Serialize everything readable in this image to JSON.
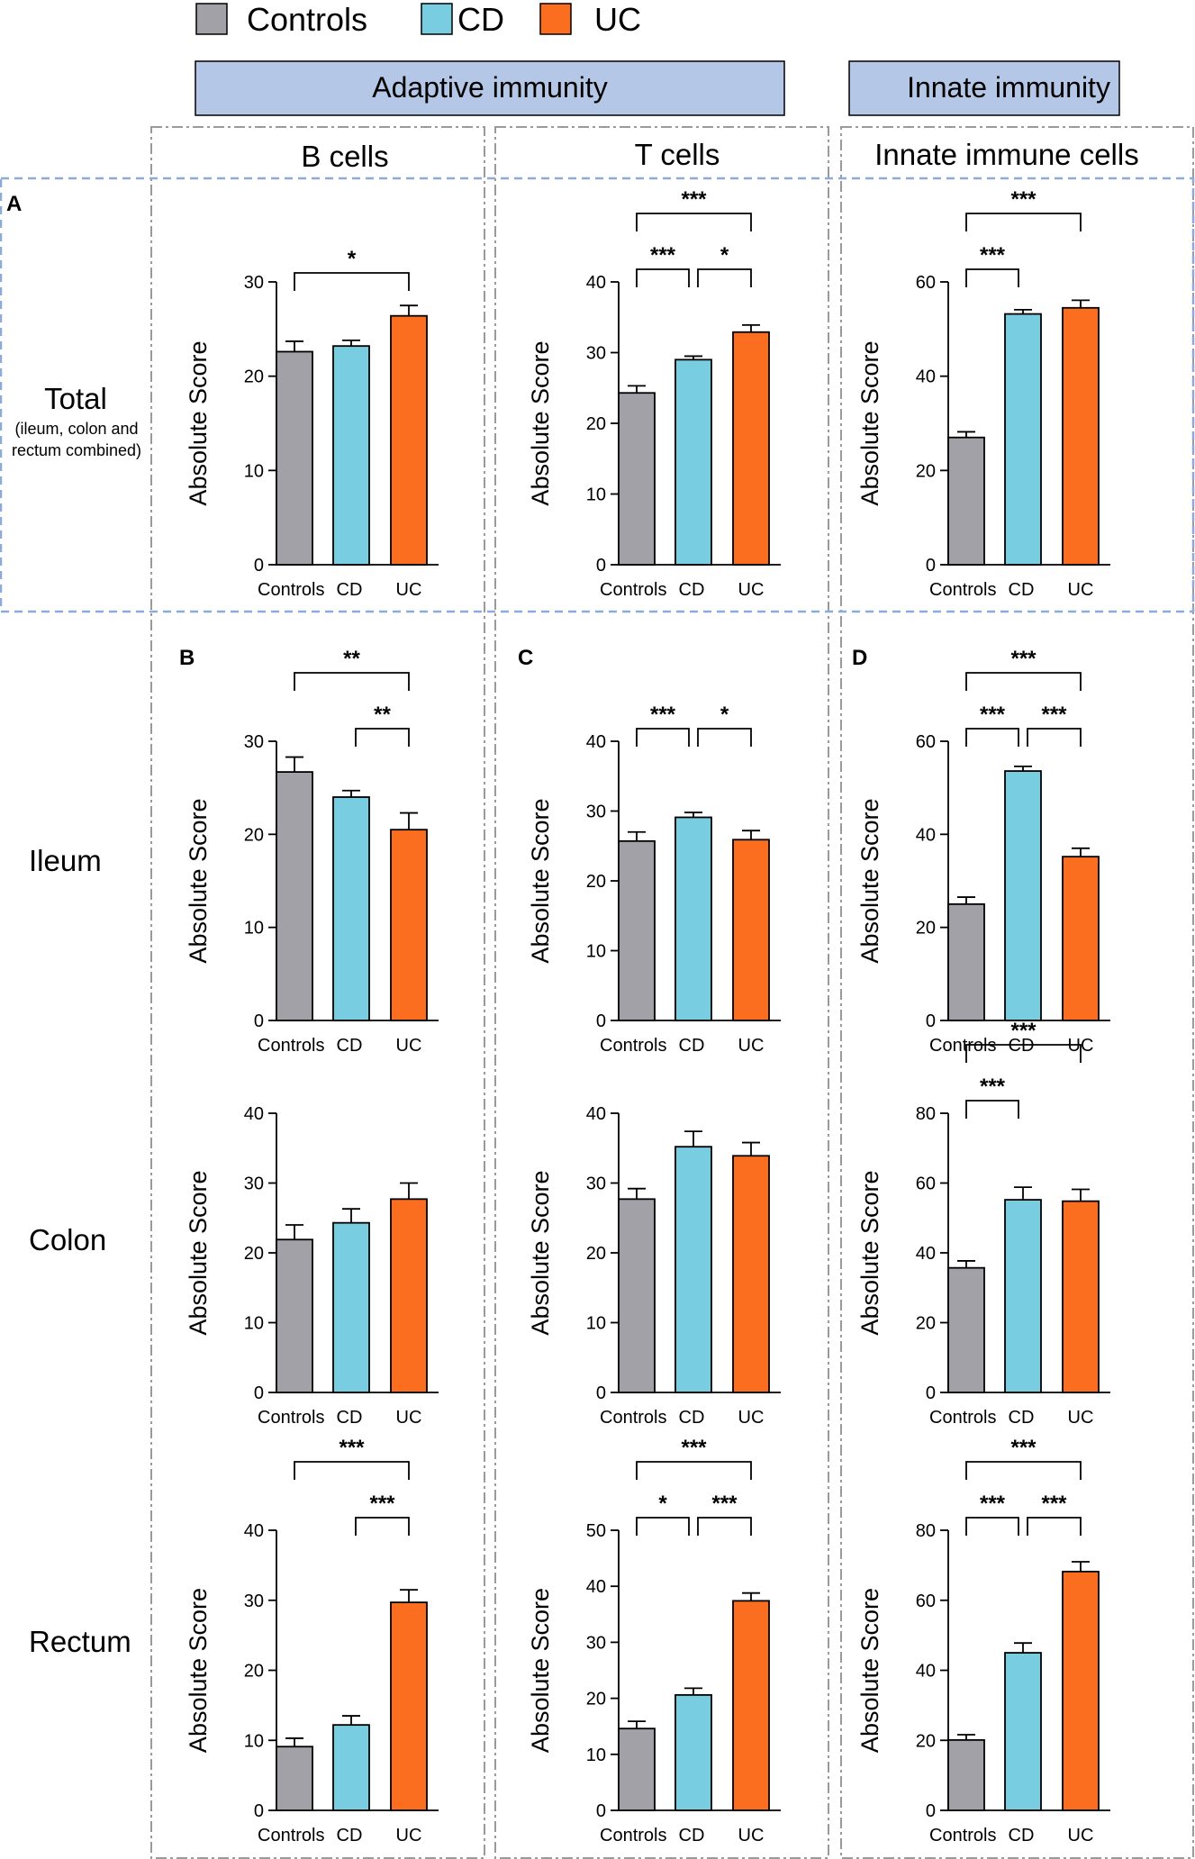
{
  "legend": [
    {
      "label": "Controls",
      "color": "#a2a1a8"
    },
    {
      "label": "CD",
      "color": "#78cde0"
    },
    {
      "label": "UC",
      "color": "#fb6e1f"
    }
  ],
  "headers": {
    "adaptive": "Adaptive immunity",
    "innate": "Innate immunity",
    "columns": [
      "B cells",
      "T cells",
      "Innate immune cells"
    ]
  },
  "rows": [
    {
      "title": "Total",
      "subtitle_lines": [
        "(ileum, colon and",
        "rectum combined)"
      ]
    },
    {
      "title": "Ileum",
      "subtitle_lines": []
    },
    {
      "title": "Colon",
      "subtitle_lines": []
    },
    {
      "title": "Rectum",
      "subtitle_lines": []
    }
  ],
  "ylabel": "Absolute Score",
  "chart_data": [
    {
      "type": "bar",
      "row": 0,
      "col": 0,
      "panel": "A",
      "categories": [
        "Controls",
        "CD",
        "UC"
      ],
      "values": [
        22.6,
        23.2,
        26.4
      ],
      "errors": [
        1.1,
        0.6,
        1.1
      ],
      "ylim": [
        0,
        30
      ],
      "yticks": [
        0,
        10,
        20,
        30
      ],
      "ylabel": "Absolute Score",
      "significance": [
        {
          "from": 0,
          "to": 2,
          "label": "*",
          "level": 1
        }
      ]
    },
    {
      "type": "bar",
      "row": 0,
      "col": 1,
      "panel": "",
      "categories": [
        "Controls",
        "CD",
        "UC"
      ],
      "values": [
        24.3,
        29.0,
        32.9
      ],
      "errors": [
        1.0,
        0.5,
        1.0
      ],
      "ylim": [
        0,
        40
      ],
      "yticks": [
        0,
        10,
        20,
        30,
        40
      ],
      "ylabel": "Absolute Score",
      "significance": [
        {
          "from": 0,
          "to": 1,
          "label": "***",
          "level": 1
        },
        {
          "from": 1,
          "to": 2,
          "label": "*",
          "level": 1
        },
        {
          "from": 0,
          "to": 2,
          "label": "***",
          "level": 2
        }
      ]
    },
    {
      "type": "bar",
      "row": 0,
      "col": 2,
      "panel": "",
      "categories": [
        "Controls",
        "CD",
        "UC"
      ],
      "values": [
        27.0,
        53.2,
        54.5
      ],
      "errors": [
        1.2,
        0.9,
        1.6
      ],
      "ylim": [
        0,
        60
      ],
      "yticks": [
        0,
        20,
        40,
        60
      ],
      "ylabel": "Absolute Score",
      "significance": [
        {
          "from": 0,
          "to": 1,
          "label": "***",
          "level": 1
        },
        {
          "from": 0,
          "to": 2,
          "label": "***",
          "level": 2
        }
      ]
    },
    {
      "type": "bar",
      "row": 1,
      "col": 0,
      "panel": "B",
      "categories": [
        "Controls",
        "CD",
        "UC"
      ],
      "values": [
        26.7,
        24.0,
        20.5
      ],
      "errors": [
        1.6,
        0.7,
        1.8
      ],
      "ylim": [
        0,
        30
      ],
      "yticks": [
        0,
        10,
        20,
        30
      ],
      "ylabel": "Absolute Score",
      "significance": [
        {
          "from": 1,
          "to": 2,
          "label": "**",
          "level": 1
        },
        {
          "from": 0,
          "to": 2,
          "label": "**",
          "level": 2
        }
      ]
    },
    {
      "type": "bar",
      "row": 1,
      "col": 1,
      "panel": "C",
      "categories": [
        "Controls",
        "CD",
        "UC"
      ],
      "values": [
        25.7,
        29.1,
        25.9
      ],
      "errors": [
        1.3,
        0.7,
        1.3
      ],
      "ylim": [
        0,
        40
      ],
      "yticks": [
        0,
        10,
        20,
        30,
        40
      ],
      "ylabel": "Absolute Score",
      "significance": [
        {
          "from": 0,
          "to": 1,
          "label": "***",
          "level": 1
        },
        {
          "from": 1,
          "to": 2,
          "label": "*",
          "level": 1
        }
      ]
    },
    {
      "type": "bar",
      "row": 1,
      "col": 2,
      "panel": "D",
      "categories": [
        "Controls",
        "CD",
        "UC"
      ],
      "values": [
        25.0,
        53.6,
        35.2
      ],
      "errors": [
        1.5,
        1.0,
        1.8
      ],
      "ylim": [
        0,
        60
      ],
      "yticks": [
        0,
        20,
        40,
        60
      ],
      "ylabel": "Absolute Score",
      "significance": [
        {
          "from": 0,
          "to": 1,
          "label": "***",
          "level": 1
        },
        {
          "from": 1,
          "to": 2,
          "label": "***",
          "level": 1
        },
        {
          "from": 0,
          "to": 2,
          "label": "***",
          "level": 2
        }
      ]
    },
    {
      "type": "bar",
      "row": 2,
      "col": 0,
      "panel": "",
      "categories": [
        "Controls",
        "CD",
        "UC"
      ],
      "values": [
        21.9,
        24.3,
        27.7
      ],
      "errors": [
        2.1,
        2.0,
        2.3
      ],
      "ylim": [
        0,
        40
      ],
      "yticks": [
        0,
        10,
        20,
        30,
        40
      ],
      "ylabel": "Absolute Score",
      "significance": []
    },
    {
      "type": "bar",
      "row": 2,
      "col": 1,
      "panel": "",
      "categories": [
        "Controls",
        "CD",
        "UC"
      ],
      "values": [
        27.7,
        35.2,
        33.9
      ],
      "errors": [
        1.5,
        2.2,
        1.9
      ],
      "ylim": [
        0,
        40
      ],
      "yticks": [
        0,
        10,
        20,
        30,
        40
      ],
      "ylabel": "Absolute Score",
      "significance": []
    },
    {
      "type": "bar",
      "row": 2,
      "col": 2,
      "panel": "",
      "categories": [
        "Controls",
        "CD",
        "UC"
      ],
      "values": [
        35.7,
        55.2,
        54.8
      ],
      "errors": [
        2.0,
        3.6,
        3.4
      ],
      "ylim": [
        0,
        80
      ],
      "yticks": [
        0,
        20,
        40,
        60,
        80
      ],
      "ylabel": "Absolute Score",
      "significance": [
        {
          "from": 0,
          "to": 1,
          "label": "***",
          "level": 1
        },
        {
          "from": 0,
          "to": 2,
          "label": "***",
          "level": 2
        }
      ]
    },
    {
      "type": "bar",
      "row": 3,
      "col": 0,
      "panel": "",
      "categories": [
        "Controls",
        "CD",
        "UC"
      ],
      "values": [
        9.1,
        12.2,
        29.7
      ],
      "errors": [
        1.2,
        1.3,
        1.8
      ],
      "ylim": [
        0,
        40
      ],
      "yticks": [
        0,
        10,
        20,
        30,
        40
      ],
      "ylabel": "Absolute Score",
      "significance": [
        {
          "from": 1,
          "to": 2,
          "label": "***",
          "level": 1
        },
        {
          "from": 0,
          "to": 2,
          "label": "***",
          "level": 2
        }
      ]
    },
    {
      "type": "bar",
      "row": 3,
      "col": 1,
      "panel": "",
      "categories": [
        "Controls",
        "CD",
        "UC"
      ],
      "values": [
        14.6,
        20.6,
        37.4
      ],
      "errors": [
        1.3,
        1.2,
        1.4
      ],
      "ylim": [
        0,
        50
      ],
      "yticks": [
        0,
        10,
        20,
        30,
        40,
        50
      ],
      "ylabel": "Absolute Score",
      "significance": [
        {
          "from": 0,
          "to": 1,
          "label": "*",
          "level": 1
        },
        {
          "from": 1,
          "to": 2,
          "label": "***",
          "level": 1
        },
        {
          "from": 0,
          "to": 2,
          "label": "***",
          "level": 2
        }
      ]
    },
    {
      "type": "bar",
      "row": 3,
      "col": 2,
      "panel": "",
      "categories": [
        "Controls",
        "CD",
        "UC"
      ],
      "values": [
        20.1,
        45.0,
        68.2
      ],
      "errors": [
        1.5,
        2.8,
        2.8
      ],
      "ylim": [
        0,
        80
      ],
      "yticks": [
        0,
        20,
        40,
        60,
        80
      ],
      "ylabel": "Absolute Score",
      "significance": [
        {
          "from": 0,
          "to": 1,
          "label": "***",
          "level": 1
        },
        {
          "from": 1,
          "to": 2,
          "label": "***",
          "level": 1
        },
        {
          "from": 0,
          "to": 2,
          "label": "***",
          "level": 2
        }
      ]
    }
  ]
}
